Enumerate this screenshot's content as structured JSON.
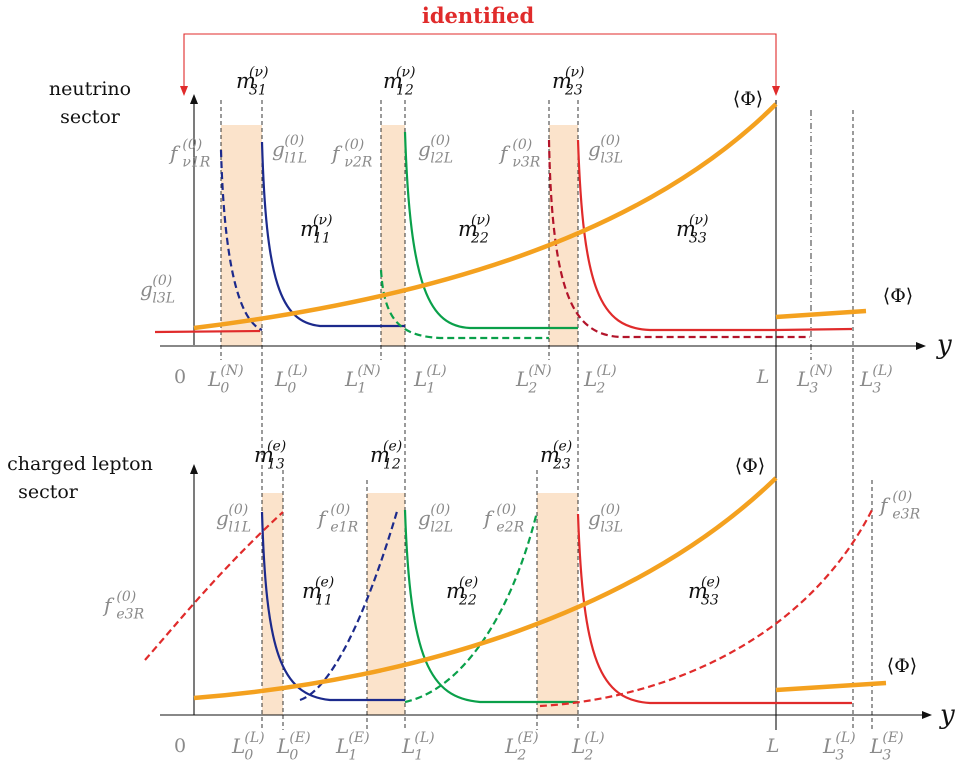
{
  "header": {
    "identified": "identified"
  },
  "top": {
    "sector_line1": "neutrino",
    "sector_line2": "sector",
    "masses": {
      "m31": {
        "base": "m",
        "sub": "31",
        "sup": "(ν)"
      },
      "m12": {
        "base": "m",
        "sub": "12",
        "sup": "(ν)"
      },
      "m23": {
        "base": "m",
        "sub": "23",
        "sup": "(ν)"
      },
      "m11": {
        "base": "m",
        "sub": "11",
        "sup": "(ν)"
      },
      "m22": {
        "base": "m",
        "sub": "22",
        "sup": "(ν)"
      },
      "m33": {
        "base": "m",
        "sub": "33",
        "sup": "(ν)"
      }
    },
    "profiles": {
      "f_nu1R": {
        "base": "f",
        "sub": "ν1R",
        "sup": "(0)"
      },
      "g_l1L": {
        "base": "g",
        "sub": "l1L",
        "sup": "(0)"
      },
      "f_nu2R": {
        "base": "f",
        "sub": "ν2R",
        "sup": "(0)"
      },
      "g_l2L": {
        "base": "g",
        "sub": "l2L",
        "sup": "(0)"
      },
      "f_nu3R": {
        "base": "f",
        "sub": "ν3R",
        "sup": "(0)"
      },
      "g_l3L": {
        "base": "g",
        "sub": "l3L",
        "sup": "(0)"
      },
      "g_l3L_left": {
        "base": "g",
        "sub": "l3L",
        "sup": "(0)"
      }
    },
    "phi": "⟨Φ⟩",
    "phi_small": "⟨Φ⟩",
    "axis_y": "y",
    "ticks": {
      "zero": "0",
      "L0N": {
        "base": "L",
        "sub": "0",
        "sup": "(N)"
      },
      "L0L": {
        "base": "L",
        "sub": "0",
        "sup": "(L)"
      },
      "L1N": {
        "base": "L",
        "sub": "1",
        "sup": "(N)"
      },
      "L1L": {
        "base": "L",
        "sub": "1",
        "sup": "(L)"
      },
      "L2N": {
        "base": "L",
        "sub": "2",
        "sup": "(N)"
      },
      "L2L": {
        "base": "L",
        "sub": "2",
        "sup": "(L)"
      },
      "L": "L",
      "L3N": {
        "base": "L",
        "sub": "3",
        "sup": "(N)"
      },
      "L3L": {
        "base": "L",
        "sub": "3",
        "sup": "(L)"
      }
    }
  },
  "bottom": {
    "sector_line1": "charged lepton",
    "sector_line2": "sector",
    "masses": {
      "m13": {
        "base": "m",
        "sub": "13",
        "sup": "(e)"
      },
      "m12": {
        "base": "m",
        "sub": "12",
        "sup": "(e)"
      },
      "m23": {
        "base": "m",
        "sub": "23",
        "sup": "(e)"
      },
      "m11": {
        "base": "m",
        "sub": "11",
        "sup": "(e)"
      },
      "m22": {
        "base": "m",
        "sub": "22",
        "sup": "(e)"
      },
      "m33": {
        "base": "m",
        "sub": "33",
        "sup": "(e)"
      }
    },
    "profiles": {
      "g_l1L": {
        "base": "g",
        "sub": "l1L",
        "sup": "(0)"
      },
      "f_e1R": {
        "base": "f",
        "sub": "e1R",
        "sup": "(0)"
      },
      "g_l2L": {
        "base": "g",
        "sub": "l2L",
        "sup": "(0)"
      },
      "f_e2R": {
        "base": "f",
        "sub": "e2R",
        "sup": "(0)"
      },
      "g_l3L": {
        "base": "g",
        "sub": "l3L",
        "sup": "(0)"
      },
      "f_e3R_right": {
        "base": "f",
        "sub": "e3R",
        "sup": "(0)"
      },
      "f_e3R_left": {
        "base": "f",
        "sub": "e3R",
        "sup": "(0)"
      }
    },
    "phi": "⟨Φ⟩",
    "phi_small": "⟨Φ⟩",
    "axis_y": "y",
    "ticks": {
      "zero": "0",
      "L0L": {
        "base": "L",
        "sub": "0",
        "sup": "(L)"
      },
      "L0E": {
        "base": "L",
        "sub": "0",
        "sup": "(E)"
      },
      "L1E": {
        "base": "L",
        "sub": "1",
        "sup": "(E)"
      },
      "L1L": {
        "base": "L",
        "sub": "1",
        "sup": "(L)"
      },
      "L2E": {
        "base": "L",
        "sub": "2",
        "sup": "(E)"
      },
      "L2L": {
        "base": "L",
        "sub": "2",
        "sup": "(L)"
      },
      "L": "L",
      "L3L": {
        "base": "L",
        "sub": "3",
        "sup": "(L)"
      },
      "L3E": {
        "base": "L",
        "sub": "3",
        "sup": "(E)"
      }
    }
  },
  "colors": {
    "blue": "#1c2a8c",
    "green": "#0aa04a",
    "red": "#e02b2b",
    "orange": "#f4a11f",
    "band": "#fbe3cb",
    "label_gray": "#8a8a8a",
    "arrow_red": "#e02b2b"
  }
}
